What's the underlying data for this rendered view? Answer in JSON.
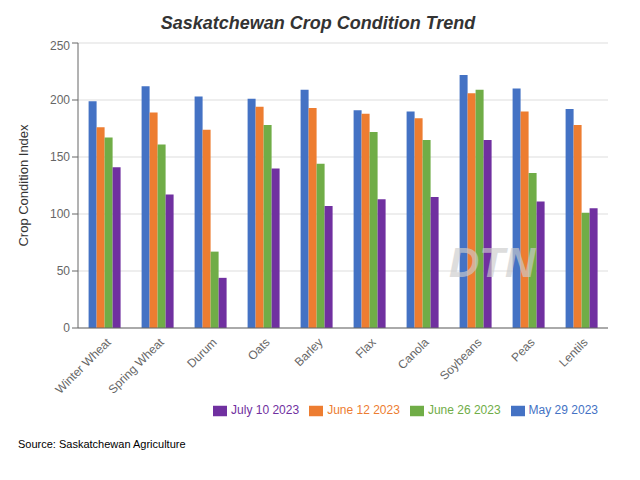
{
  "chart_data": {
    "type": "bar",
    "title": "Saskatchewan Crop Condition Trend",
    "ylabel": "Crop Condition Index",
    "categories": [
      "Winter Wheat",
      "Spring Wheat",
      "Durum",
      "Oats",
      "Barley",
      "Flax",
      "Canola",
      "Soybeans",
      "Peas",
      "Lentils"
    ],
    "series": [
      {
        "name": "May 29 2023",
        "color": "#4472C4",
        "values": [
          199,
          212,
          203,
          201,
          209,
          191,
          190,
          222,
          210,
          192
        ]
      },
      {
        "name": "June 12 2023",
        "color": "#ED7D31",
        "values": [
          176,
          189,
          174,
          194,
          193,
          188,
          184,
          206,
          190,
          178
        ]
      },
      {
        "name": "June 26 2023",
        "color": "#70AD47",
        "values": [
          167,
          161,
          67,
          178,
          144,
          172,
          165,
          209,
          136,
          101
        ]
      },
      {
        "name": "July 10 2023",
        "color": "#7030A0",
        "values": [
          141,
          117,
          44,
          140,
          107,
          113,
          115,
          165,
          111,
          105
        ]
      }
    ],
    "ylim": [
      0,
      250
    ],
    "yticks": [
      0,
      50,
      100,
      150,
      200,
      250
    ],
    "grid": true,
    "legend": "lower right",
    "annotations": [
      "DTN",
      "Source: Saskatchewan Agriculture"
    ]
  }
}
